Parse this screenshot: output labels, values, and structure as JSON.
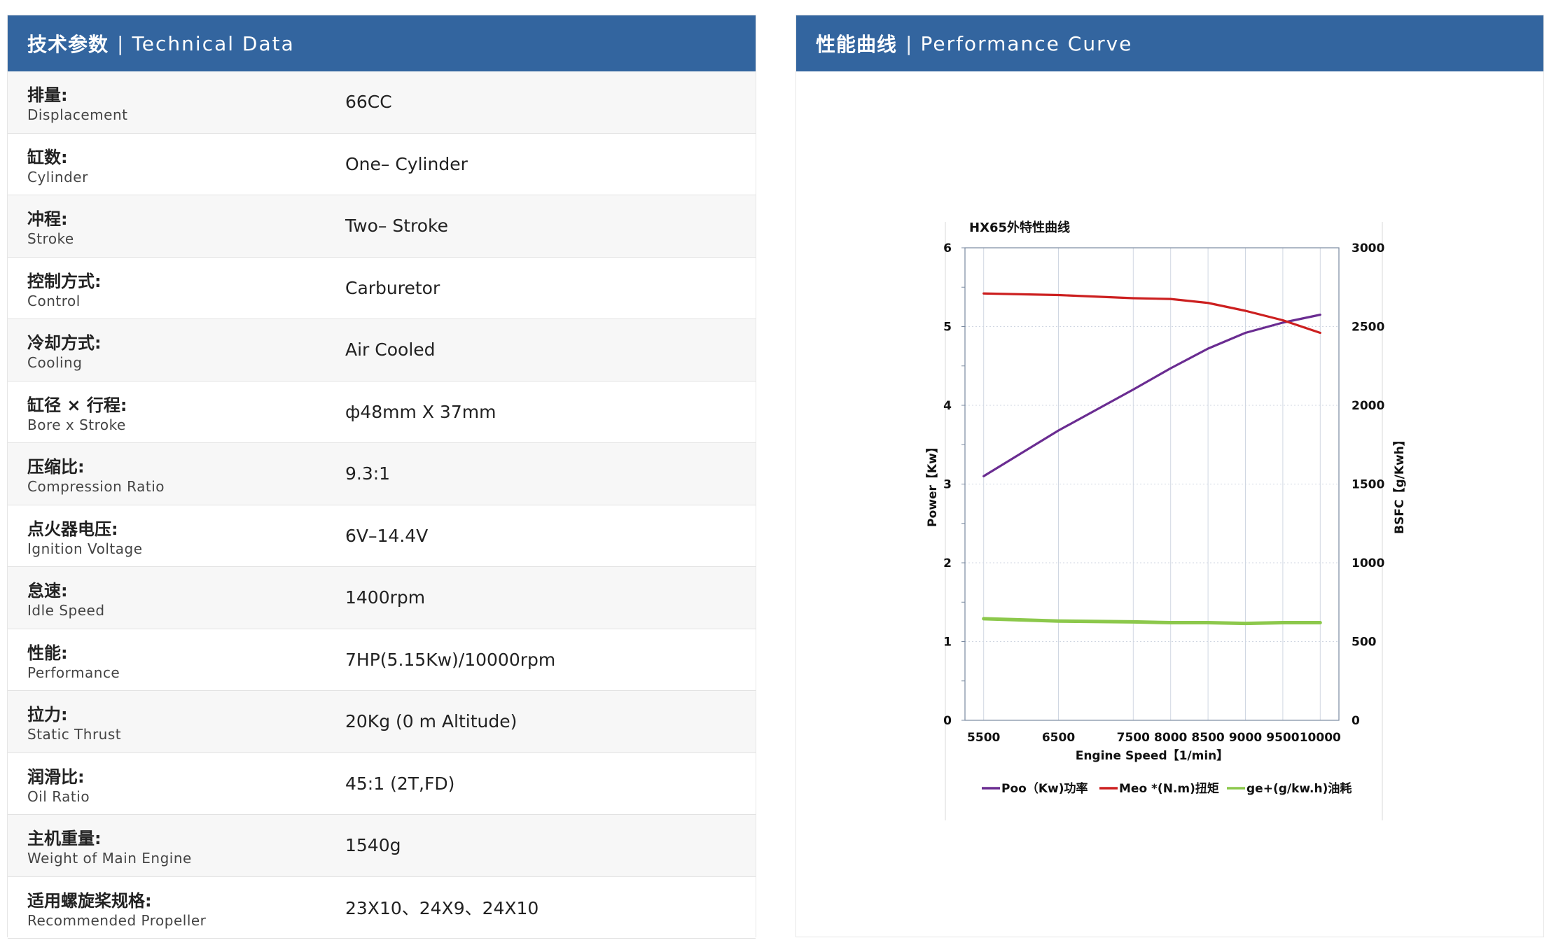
{
  "left_panel": {
    "header_cn": "技术参数",
    "header_sep": "|",
    "header_en": "Technical Data",
    "rows": [
      {
        "cn": "排量:",
        "en": "Displacement",
        "value": "66CC"
      },
      {
        "cn": "缸数:",
        "en": "Cylinder",
        "value": "One– Cylinder"
      },
      {
        "cn": "冲程:",
        "en": "Stroke",
        "value": "Two– Stroke"
      },
      {
        "cn": "控制方式:",
        "en": "Control",
        "value": "Carburetor"
      },
      {
        "cn": "冷却方式:",
        "en": "Cooling",
        "value": "Air Cooled"
      },
      {
        "cn": "缸径 × 行程:",
        "en": "Bore x Stroke",
        "value": "ф48mm X 37mm"
      },
      {
        "cn": "压缩比:",
        "en": "Compression Ratio",
        "value": "9.3:1"
      },
      {
        "cn": "点火器电压:",
        "en": "Ignition Voltage",
        "value": "6V–14.4V"
      },
      {
        "cn": "怠速:",
        "en": "Idle Speed",
        "value": "1400rpm"
      },
      {
        "cn": "性能:",
        "en": "Performance",
        "value": "7HP(5.15Kw)/10000rpm"
      },
      {
        "cn": "拉力:",
        "en": "Static Thrust",
        "value": "20Kg (0 m Altitude)"
      },
      {
        "cn": "润滑比:",
        "en": "Oil Ratio",
        "value": "45:1 (2T,FD)"
      },
      {
        "cn": "主机重量:",
        "en": "Weight of Main Engine",
        "value": "1540g"
      },
      {
        "cn": "适用螺旋桨规格:",
        "en": "Recommended Propeller",
        "value": "23X10、24X9、24X10"
      }
    ]
  },
  "right_panel": {
    "header_cn": "性能曲线",
    "header_sep": "|",
    "header_en": "Performance Curve"
  },
  "chart_data": {
    "type": "line",
    "title": "HX65外特性曲线",
    "xlabel": "Engine Speed【1/min】",
    "ylabel": "Power【Kw】",
    "y2label": "BSFC【g/Kwh】",
    "x": [
      5500,
      6500,
      7500,
      8000,
      8500,
      9000,
      9500,
      10000
    ],
    "xlim": [
      5250,
      10250
    ],
    "ylim": [
      0,
      6
    ],
    "y2lim": [
      0,
      3000
    ],
    "y_ticks": [
      0,
      1,
      2,
      3,
      4,
      5,
      6
    ],
    "y2_ticks": [
      0,
      500,
      1000,
      1500,
      2000,
      2500,
      3000
    ],
    "grid": true,
    "legend_position": "bottom",
    "series": [
      {
        "name": "Poo（Kw)功率",
        "color": "#6a2c91",
        "axis": "left",
        "values": [
          3.1,
          3.68,
          4.2,
          4.47,
          4.72,
          4.92,
          5.05,
          5.15
        ]
      },
      {
        "name": "Meo *(N.m)扭矩",
        "color": "#cc1f1f",
        "axis": "left",
        "values": [
          5.42,
          5.4,
          5.36,
          5.35,
          5.3,
          5.2,
          5.08,
          4.92
        ]
      },
      {
        "name": "ge+(g/kw.h)油耗",
        "color": "#8cc84b",
        "axis": "left",
        "values": [
          1.29,
          1.26,
          1.25,
          1.24,
          1.24,
          1.23,
          1.24,
          1.24
        ]
      }
    ]
  }
}
